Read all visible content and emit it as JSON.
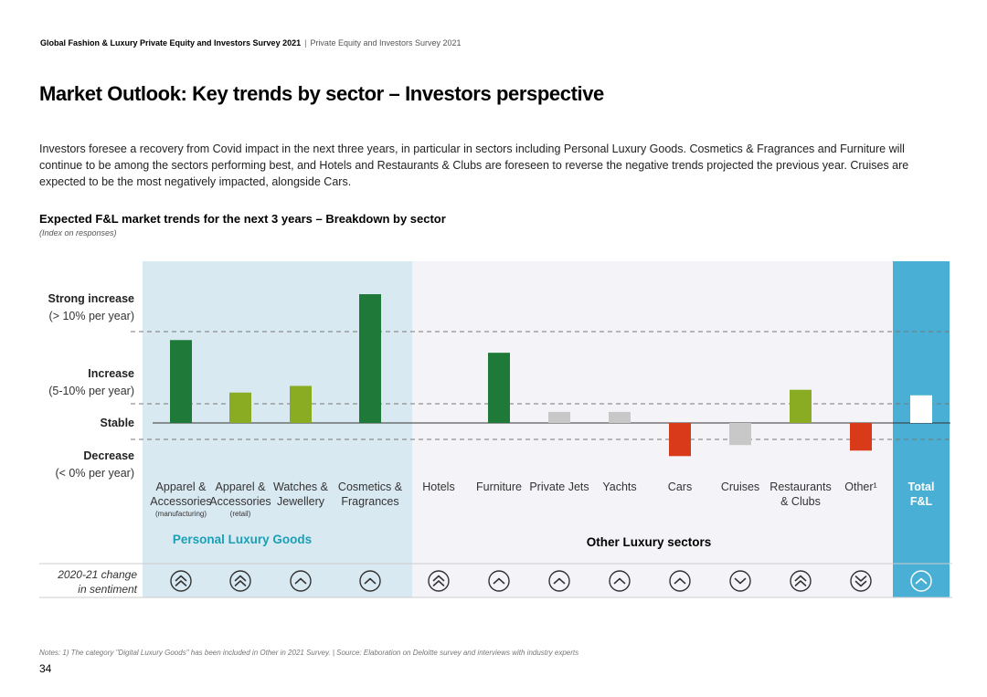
{
  "header": {
    "report": "Global Fashion & Luxury Private Equity and Investors Survey 2021",
    "separator": "|",
    "section": "Private Equity and Investors Survey 2021"
  },
  "title": "Market Outlook: Key trends by sector – Investors perspective",
  "intro": "Investors foresee a recovery from Covid impact in the next three years, in particular in sectors including Personal Luxury Goods. Cosmetics & Fragrances and Furniture will continue to be among the sectors performing best, and Hotels and Restaurants & Clubs are foreseen to reverse the negative trends projected the previous year. Cruises are expected to be the most negatively impacted, alongside Cars.",
  "chart_data": {
    "type": "bar",
    "title": "Expected F&L market trends for the next 3 years – Breakdown by sector",
    "subtitle": "(Index on responses)",
    "y_levels": [
      {
        "label": "Strong increase",
        "range": "(> 10% per year)"
      },
      {
        "label": "Increase",
        "range": "(5-10% per year)"
      },
      {
        "label": "Stable",
        "range": ""
      },
      {
        "label": "Decrease",
        "range": "(< 0% per year)"
      }
    ],
    "categories": [
      {
        "label": [
          "Apparel &",
          "Accessories"
        ],
        "sub": "(manufacturing)",
        "value": 1.5,
        "color": "#1f7a3a",
        "sentiment": "double-up"
      },
      {
        "label": [
          "Apparel &",
          "Accessories"
        ],
        "sub": "(retail)",
        "value": 0.55,
        "color": "#8aac23",
        "sentiment": "double-up"
      },
      {
        "label": [
          "Watches &",
          "Jewellery"
        ],
        "sub": "",
        "value": 0.67,
        "color": "#8aac23",
        "sentiment": "up"
      },
      {
        "label": [
          "Cosmetics &",
          "Fragrances"
        ],
        "sub": "",
        "value": 2.33,
        "color": "#1f7a3a",
        "sentiment": "up"
      },
      {
        "label": [
          "Hotels"
        ],
        "sub": "",
        "value": 0,
        "color": "#c8c8c8",
        "sentiment": "double-up"
      },
      {
        "label": [
          "Furniture"
        ],
        "sub": "",
        "value": 1.27,
        "color": "#1f7a3a",
        "sentiment": "up"
      },
      {
        "label": [
          "Private Jets"
        ],
        "sub": "",
        "value": 0.2,
        "color": "#c8c8c8",
        "sentiment": "up"
      },
      {
        "label": [
          "Yachts"
        ],
        "sub": "",
        "value": 0.2,
        "color": "#c8c8c8",
        "sentiment": "up"
      },
      {
        "label": [
          "Cars"
        ],
        "sub": "",
        "value": -0.6,
        "color": "#d93a1a",
        "sentiment": "up"
      },
      {
        "label": [
          "Cruises"
        ],
        "sub": "",
        "value": -0.4,
        "color": "#c8c8c8",
        "sentiment": "down"
      },
      {
        "label": [
          "Restaurants",
          "& Clubs"
        ],
        "sub": "",
        "value": 0.6,
        "color": "#8aac23",
        "sentiment": "double-up"
      },
      {
        "label": [
          "Other¹"
        ],
        "sub": "",
        "value": -0.5,
        "color": "#d93a1a",
        "sentiment": "double-down"
      },
      {
        "label": [
          "Total",
          "F&L"
        ],
        "sub": "",
        "value": 0.5,
        "color": "#ffffff",
        "sentiment": "up"
      }
    ],
    "groups": [
      {
        "label": "Personal Luxury Goods",
        "color": "#1aa0b5"
      },
      {
        "label": "Other Luxury sectors",
        "color": "#000000"
      }
    ],
    "sentiment_row_label": [
      "2020-21 change",
      "in sentiment"
    ],
    "colors": {
      "plg_background": "#d9e9f2",
      "other_background": "#f4f3f7",
      "total_background": "#4aafd4",
      "icon_stroke": "#333333",
      "total_icon_stroke": "#ffffff"
    }
  },
  "notes": "Notes: 1) The category \"Digital Luxury Goods\" has been included in Other in 2021 Survey. | Source: Elaboration on Deloitte survey and interviews with industry experts",
  "page_number": "34"
}
